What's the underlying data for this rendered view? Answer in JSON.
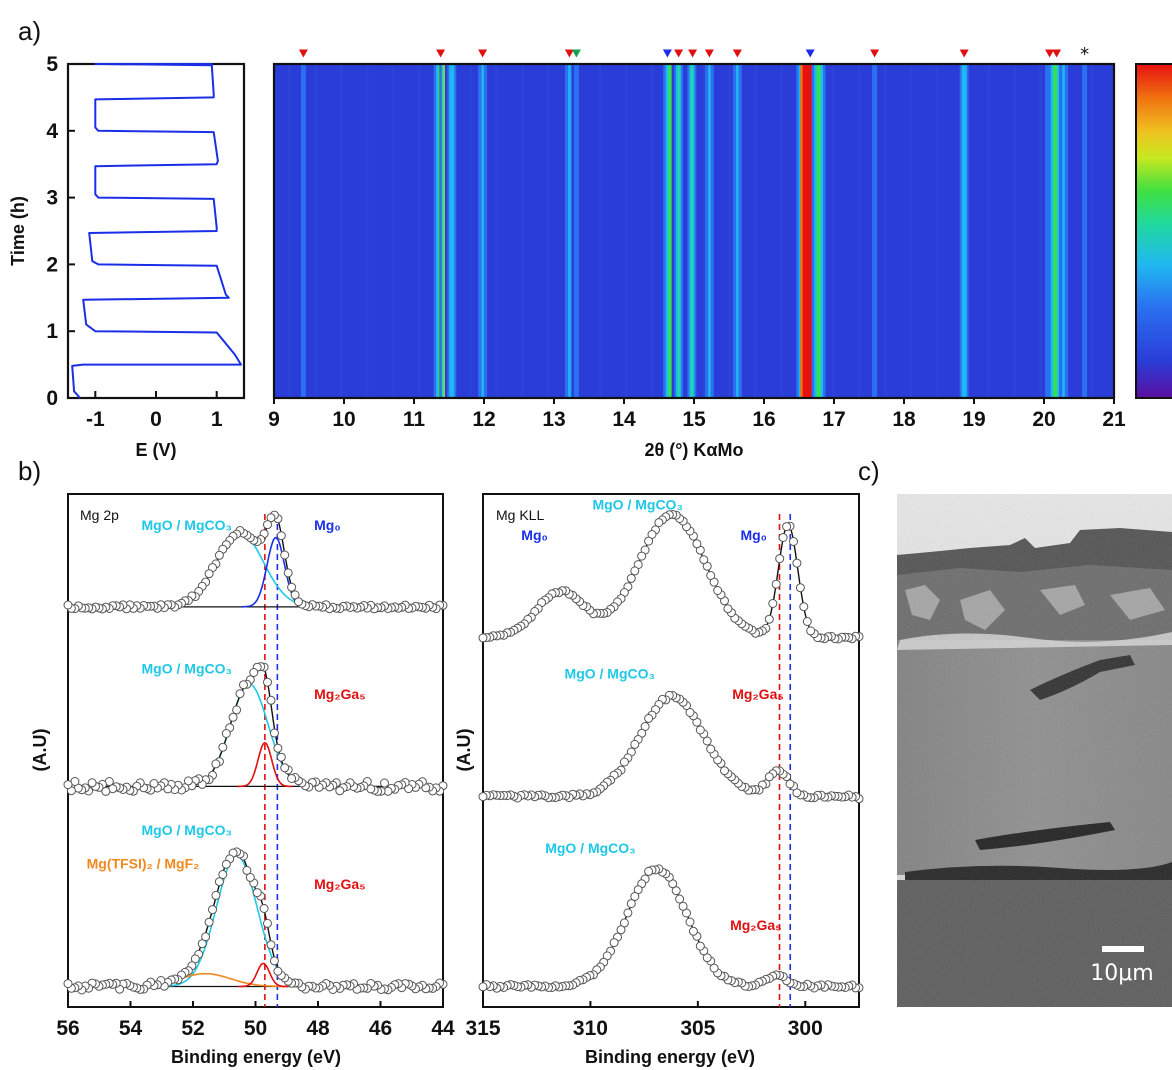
{
  "panels": {
    "a": "a)",
    "b": "b)",
    "c": "c)"
  },
  "colors": {
    "blue_curve": "#1a2ee8",
    "cyan": "#1ec8e6",
    "red": "#e01010",
    "orange": "#f08a20",
    "black": "#111111",
    "green": "#18a050"
  },
  "chart_data": [
    {
      "id": "a_echem",
      "type": "line",
      "xlabel": "E (V)",
      "ylabel": "Time (h)",
      "xticks": [
        -1,
        0,
        1
      ],
      "yticks": [
        0,
        1,
        2,
        3,
        4,
        5
      ],
      "xlim": [
        -1.45,
        1.45
      ],
      "ylim": [
        0,
        5
      ],
      "series": [
        {
          "color": "#1a2ee8",
          "x": [
            -1.25,
            -1.35,
            -1.38,
            -1.2,
            1.4,
            1.3,
            1.0,
            -1.0,
            -1.15,
            -1.2,
            1.2,
            1.15,
            1.0,
            -0.95,
            -1.05,
            -1.1,
            1.0,
            1.0,
            0.95,
            -0.95,
            -1.0,
            -1.0,
            1.0,
            1.02,
            0.95,
            -0.95,
            -1.0,
            -1.0,
            0.95,
            0.95,
            0.92,
            -0.92,
            -1.0,
            -1.0,
            0.9,
            0.92,
            0.9
          ],
          "y": [
            0.0,
            0.1,
            0.48,
            0.5,
            0.5,
            0.65,
            0.98,
            1.0,
            1.1,
            1.47,
            1.5,
            1.55,
            1.98,
            2.0,
            2.05,
            2.47,
            2.5,
            2.55,
            2.98,
            3.0,
            3.05,
            3.47,
            3.5,
            3.55,
            3.98,
            4.0,
            4.05,
            4.47,
            4.5,
            4.55,
            4.98,
            5.0,
            5.0,
            5.0,
            5.0,
            5.0,
            5.0
          ]
        }
      ]
    },
    {
      "id": "a_heatmap",
      "type": "heatmap",
      "xlabel": "2θ (°) KαMo",
      "xticks": [
        9,
        10,
        11,
        12,
        13,
        14,
        15,
        16,
        17,
        18,
        19,
        20,
        21
      ],
      "xlim": [
        9,
        21
      ],
      "ylim": [
        0,
        5
      ],
      "colorscale": [
        "#5a0fa0",
        "#2a3dd8",
        "#2a70f0",
        "#20b8f0",
        "#20d8a0",
        "#40e040",
        "#c8e820",
        "#f0c020",
        "#f07010",
        "#e81010"
      ],
      "peaks": [
        {
          "x": 9.42,
          "intensity": 0.22
        },
        {
          "x": 11.38,
          "intensity": 0.62
        },
        {
          "x": 11.46,
          "intensity": 0.72
        },
        {
          "x": 11.54,
          "intensity": 0.38
        },
        {
          "x": 11.98,
          "intensity": 0.3
        },
        {
          "x": 13.22,
          "intensity": 0.28
        },
        {
          "x": 13.32,
          "intensity": 0.24
        },
        {
          "x": 14.66,
          "intensity": 0.5
        },
        {
          "x": 14.78,
          "intensity": 0.45
        },
        {
          "x": 14.97,
          "intensity": 0.42
        },
        {
          "x": 15.22,
          "intensity": 0.28
        },
        {
          "x": 15.62,
          "intensity": 0.3
        },
        {
          "x": 16.56,
          "intensity": 0.5
        },
        {
          "x": 16.66,
          "intensity": 1.0
        },
        {
          "x": 16.78,
          "intensity": 0.55
        },
        {
          "x": 17.58,
          "intensity": 0.24
        },
        {
          "x": 18.86,
          "intensity": 0.36
        },
        {
          "x": 20.08,
          "intensity": 0.3
        },
        {
          "x": 20.16,
          "intensity": 0.55
        },
        {
          "x": 20.28,
          "intensity": 0.3
        },
        {
          "x": 20.58,
          "intensity": 0.2
        }
      ],
      "markers": [
        {
          "x": 9.42,
          "color": "#e01010",
          "kind": "triangle"
        },
        {
          "x": 11.38,
          "color": "#e01010",
          "kind": "triangle"
        },
        {
          "x": 11.98,
          "color": "#e01010",
          "kind": "triangle"
        },
        {
          "x": 13.22,
          "color": "#e01010",
          "kind": "triangle"
        },
        {
          "x": 13.32,
          "color": "#18a050",
          "kind": "triangle"
        },
        {
          "x": 14.62,
          "color": "#1a2ee8",
          "kind": "triangle"
        },
        {
          "x": 14.78,
          "color": "#e01010",
          "kind": "triangle"
        },
        {
          "x": 14.98,
          "color": "#e01010",
          "kind": "triangle"
        },
        {
          "x": 15.22,
          "color": "#e01010",
          "kind": "triangle"
        },
        {
          "x": 15.62,
          "color": "#e01010",
          "kind": "triangle"
        },
        {
          "x": 16.66,
          "color": "#1a2ee8",
          "kind": "triangle"
        },
        {
          "x": 17.58,
          "color": "#e01010",
          "kind": "triangle"
        },
        {
          "x": 18.86,
          "color": "#e01010",
          "kind": "triangle"
        },
        {
          "x": 20.08,
          "color": "#e01010",
          "kind": "triangle"
        },
        {
          "x": 20.18,
          "color": "#e01010",
          "kind": "triangle"
        },
        {
          "x": 20.58,
          "color": "#111111",
          "kind": "star"
        }
      ]
    },
    {
      "id": "b_mg2p",
      "type": "scatter",
      "xlabel": "Binding energy (eV)",
      "ylabel": "(A.U)",
      "inner_label": "Mg 2p",
      "xticks": [
        56,
        54,
        52,
        50,
        48,
        46,
        44
      ],
      "xlim": [
        56,
        44
      ],
      "xreversed": true,
      "vlines": [
        {
          "x": 49.7,
          "color": "#e01010"
        },
        {
          "x": 49.3,
          "color": "#1a2ee8"
        }
      ],
      "spectra": [
        {
          "offset": 0.78,
          "noise": 0.004,
          "peaks": [
            {
              "center": 50.5,
              "height": 0.145,
              "width": 0.75,
              "color": "#1ec8e6"
            },
            {
              "center": 49.35,
              "height": 0.135,
              "width": 0.28,
              "color": "#1a2ee8"
            }
          ],
          "labels": [
            {
              "text": "MgO / MgCO₃",
              "color": "#1ec8e6",
              "x": 52.2,
              "y": 0.93
            },
            {
              "text": "Mg₀",
              "color": "#1a2ee8",
              "x": 47.7,
              "y": 0.93
            }
          ]
        },
        {
          "offset": 0.43,
          "noise": 0.01,
          "peaks": [
            {
              "center": 50.2,
              "height": 0.2,
              "width": 0.6,
              "color": "#1ec8e6"
            },
            {
              "center": 49.7,
              "height": 0.085,
              "width": 0.22,
              "color": "#e01010"
            }
          ],
          "labels": [
            {
              "text": "MgO / MgCO₃",
              "color": "#1ec8e6",
              "x": 52.2,
              "y": 0.65
            },
            {
              "text": "Mg₂Ga₅",
              "color": "#e01010",
              "x": 47.3,
              "y": 0.6
            }
          ]
        },
        {
          "offset": 0.04,
          "noise": 0.007,
          "peaks": [
            {
              "center": 50.6,
              "height": 0.255,
              "width": 0.65,
              "color": "#1ec8e6"
            },
            {
              "center": 51.6,
              "height": 0.025,
              "width": 0.8,
              "color": "#f08a20"
            },
            {
              "center": 49.75,
              "height": 0.045,
              "width": 0.2,
              "color": "#e01010"
            }
          ],
          "labels": [
            {
              "text": "MgO / MgCO₃",
              "color": "#1ec8e6",
              "x": 52.2,
              "y": 0.335
            },
            {
              "text": "Mg(TFSI)₂ / MgF₂",
              "color": "#f08a20",
              "x": 53.6,
              "y": 0.27
            },
            {
              "text": "Mg₂Ga₅",
              "color": "#e01010",
              "x": 47.3,
              "y": 0.23
            }
          ]
        }
      ]
    },
    {
      "id": "b_mgkll",
      "type": "scatter",
      "xlabel": "Binding energy (eV)",
      "ylabel": "(A.U)",
      "inner_label": "Mg KLL",
      "xticks": [
        315,
        310,
        305,
        300
      ],
      "xlim": [
        315,
        297.5
      ],
      "xreversed": true,
      "vlines": [
        {
          "x": 301.2,
          "color": "#e01010"
        },
        {
          "x": 300.7,
          "color": "#1a2ee8"
        }
      ],
      "spectra": [
        {
          "offset": 0.72,
          "noise": 0.003,
          "peaks": [
            {
              "center": 311.4,
              "height": 0.09,
              "width": 1.1
            },
            {
              "center": 306.2,
              "height": 0.24,
              "width": 1.55
            },
            {
              "center": 300.8,
              "height": 0.22,
              "width": 0.45
            }
          ],
          "labels": [
            {
              "text": "Mg₀",
              "color": "#1a2ee8",
              "x": 312.6,
              "y": 0.91
            },
            {
              "text": "MgO / MgCO₃",
              "color": "#1ec8e6",
              "x": 307.8,
              "y": 0.97
            },
            {
              "text": "Mg₀",
              "color": "#1a2ee8",
              "x": 302.4,
              "y": 0.91
            }
          ]
        },
        {
          "offset": 0.41,
          "noise": 0.004,
          "peaks": [
            {
              "center": 306.2,
              "height": 0.195,
              "width": 1.5
            },
            {
              "center": 301.25,
              "height": 0.05,
              "width": 0.5
            }
          ],
          "labels": [
            {
              "text": "MgO / MgCO₃",
              "color": "#1ec8e6",
              "x": 309.1,
              "y": 0.64
            },
            {
              "text": "Mg₂Ga₅",
              "color": "#e01010",
              "x": 302.2,
              "y": 0.6
            }
          ]
        },
        {
          "offset": 0.04,
          "noise": 0.004,
          "peaks": [
            {
              "center": 306.9,
              "height": 0.23,
              "width": 1.4
            },
            {
              "center": 301.3,
              "height": 0.02,
              "width": 0.5
            }
          ],
          "labels": [
            {
              "text": "MgO / MgCO₃",
              "color": "#1ec8e6",
              "x": 310.0,
              "y": 0.3
            },
            {
              "text": "Mg₂Ga₅",
              "color": "#e01010",
              "x": 302.3,
              "y": 0.15
            }
          ]
        }
      ]
    }
  ],
  "sem": {
    "scalebar_label": "10μm"
  }
}
